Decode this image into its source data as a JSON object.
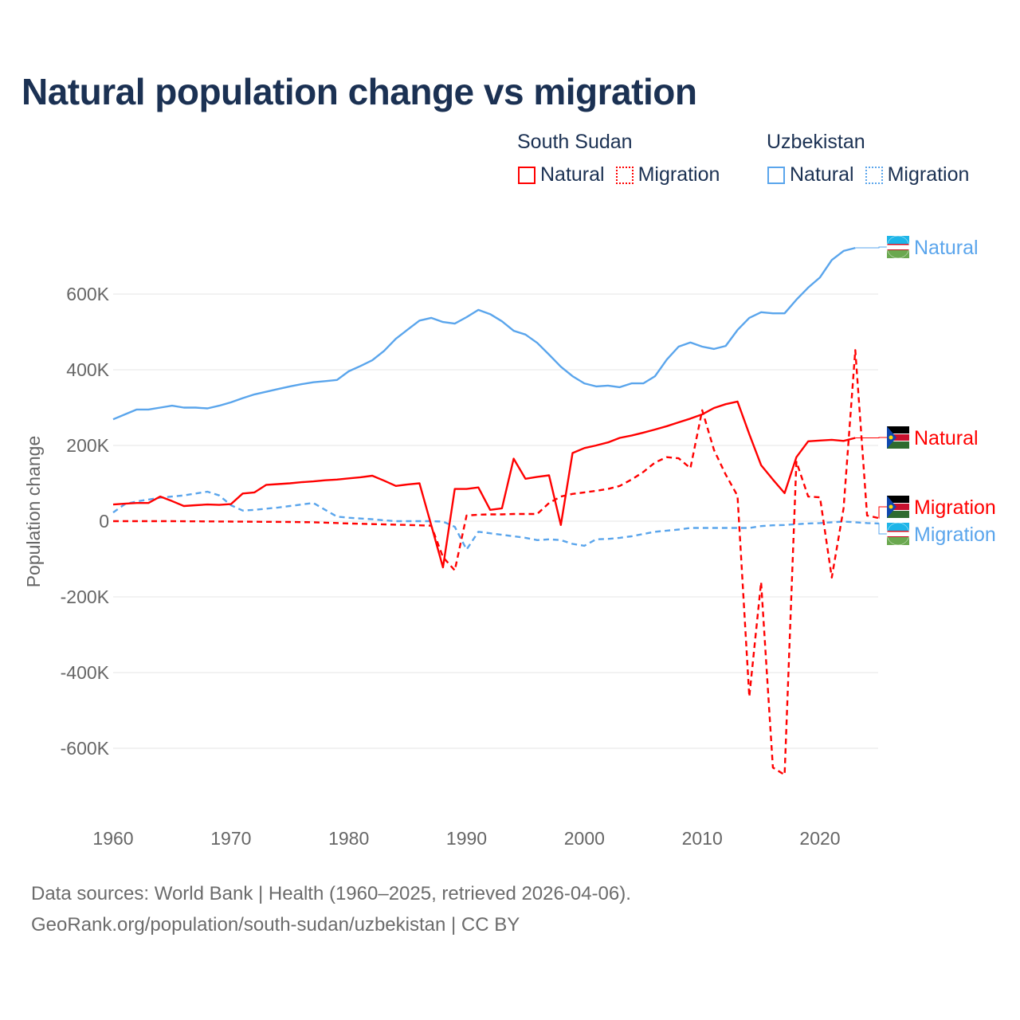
{
  "title": "Natural population change vs migration",
  "legend": {
    "groups": [
      {
        "name": "South Sudan",
        "items": [
          "Natural",
          "Migration"
        ]
      },
      {
        "name": "Uzbekistan",
        "items": [
          "Natural",
          "Migration"
        ]
      }
    ]
  },
  "footer": {
    "line1": "Data sources: World Bank | Health (1960–2025, retrieved 2026-04-06).",
    "line2": "GeoRank.org/population/south-sudan/uzbekistan | CC BY"
  },
  "colors": {
    "south_sudan": "#ff0000",
    "uzbekistan": "#5aa5ec",
    "grid": "#e6e6e6",
    "axis_text": "#666666"
  },
  "chart_data": {
    "type": "line",
    "title": "Natural population change vs migration",
    "xlabel": "",
    "ylabel": "Population change",
    "xlim": [
      1960,
      2025
    ],
    "ylim": [
      -750000,
      750000
    ],
    "x_ticks": [
      1960,
      1970,
      1980,
      1990,
      2000,
      2010,
      2020
    ],
    "x_tick_labels": [
      "1960",
      "1970",
      "1980",
      "1990",
      "2000",
      "2010",
      "2020"
    ],
    "y_ticks": [
      -600000,
      -400000,
      -200000,
      0,
      200000,
      400000,
      600000
    ],
    "y_tick_labels": [
      "-600K",
      "-400K",
      "-200K",
      "0",
      "200K",
      "400K",
      "600K"
    ],
    "grid": true,
    "legend_position": "top-right",
    "series": [
      {
        "name": "Uzbekistan Natural",
        "country": "Uzbekistan",
        "kind": "Natural",
        "end_label": "Natural",
        "color": "#5aa5ec",
        "dash": false,
        "points": [
          [
            1960,
            269000
          ],
          [
            1961,
            282000
          ],
          [
            1962,
            295000
          ],
          [
            1963,
            295000
          ],
          [
            1964,
            300000
          ],
          [
            1965,
            305000
          ],
          [
            1966,
            300000
          ],
          [
            1967,
            300000
          ],
          [
            1968,
            298000
          ],
          [
            1969,
            305000
          ],
          [
            1970,
            314000
          ],
          [
            1971,
            325000
          ],
          [
            1972,
            335000
          ],
          [
            1973,
            342000
          ],
          [
            1974,
            349000
          ],
          [
            1975,
            356000
          ],
          [
            1976,
            362000
          ],
          [
            1977,
            367000
          ],
          [
            1978,
            370000
          ],
          [
            1979,
            373000
          ],
          [
            1980,
            396000
          ],
          [
            1981,
            410000
          ],
          [
            1982,
            425000
          ],
          [
            1983,
            450000
          ],
          [
            1984,
            482000
          ],
          [
            1985,
            506000
          ],
          [
            1986,
            530000
          ],
          [
            1987,
            537000
          ],
          [
            1988,
            526000
          ],
          [
            1989,
            522000
          ],
          [
            1990,
            539000
          ],
          [
            1991,
            558000
          ],
          [
            1992,
            547000
          ],
          [
            1993,
            528000
          ],
          [
            1994,
            503000
          ],
          [
            1995,
            493000
          ],
          [
            1996,
            471000
          ],
          [
            1997,
            440000
          ],
          [
            1998,
            408000
          ],
          [
            1999,
            383000
          ],
          [
            2000,
            364000
          ],
          [
            2001,
            356000
          ],
          [
            2002,
            358000
          ],
          [
            2003,
            354000
          ],
          [
            2004,
            364000
          ],
          [
            2005,
            364000
          ],
          [
            2006,
            383000
          ],
          [
            2007,
            427000
          ],
          [
            2008,
            461000
          ],
          [
            2009,
            472000
          ],
          [
            2010,
            461000
          ],
          [
            2011,
            455000
          ],
          [
            2012,
            463000
          ],
          [
            2013,
            505000
          ],
          [
            2014,
            537000
          ],
          [
            2015,
            552000
          ],
          [
            2016,
            549000
          ],
          [
            2017,
            549000
          ],
          [
            2018,
            585000
          ],
          [
            2019,
            617000
          ],
          [
            2020,
            644000
          ],
          [
            2021,
            690000
          ],
          [
            2022,
            714000
          ],
          [
            2023,
            722000
          ]
        ]
      },
      {
        "name": "Uzbekistan Migration",
        "country": "Uzbekistan",
        "kind": "Migration",
        "end_label": "Migration",
        "color": "#5aa5ec",
        "dash": true,
        "points": [
          [
            1960,
            23000
          ],
          [
            1961,
            45000
          ],
          [
            1962,
            52000
          ],
          [
            1963,
            57000
          ],
          [
            1964,
            62000
          ],
          [
            1965,
            65000
          ],
          [
            1966,
            68000
          ],
          [
            1967,
            73000
          ],
          [
            1968,
            78000
          ],
          [
            1969,
            68000
          ],
          [
            1970,
            42000
          ],
          [
            1971,
            28000
          ],
          [
            1972,
            30000
          ],
          [
            1973,
            33000
          ],
          [
            1974,
            36000
          ],
          [
            1975,
            40000
          ],
          [
            1976,
            44000
          ],
          [
            1977,
            48000
          ],
          [
            1978,
            30000
          ],
          [
            1979,
            12000
          ],
          [
            1980,
            9000
          ],
          [
            1981,
            7000
          ],
          [
            1982,
            5000
          ],
          [
            1983,
            2000
          ],
          [
            1984,
            0
          ],
          [
            1985,
            0
          ],
          [
            1986,
            0
          ],
          [
            1987,
            0
          ],
          [
            1988,
            -1000
          ],
          [
            1989,
            -15000
          ],
          [
            1990,
            -75000
          ],
          [
            1991,
            -28000
          ],
          [
            1992,
            -32000
          ],
          [
            1993,
            -36000
          ],
          [
            1994,
            -40000
          ],
          [
            1995,
            -44000
          ],
          [
            1996,
            -50000
          ],
          [
            1997,
            -48000
          ],
          [
            1998,
            -50000
          ],
          [
            1999,
            -60000
          ],
          [
            2000,
            -65000
          ],
          [
            2001,
            -48000
          ],
          [
            2002,
            -47000
          ],
          [
            2003,
            -44000
          ],
          [
            2004,
            -40000
          ],
          [
            2005,
            -34000
          ],
          [
            2006,
            -28000
          ],
          [
            2007,
            -25000
          ],
          [
            2008,
            -22000
          ],
          [
            2009,
            -18000
          ],
          [
            2010,
            -18000
          ],
          [
            2011,
            -18000
          ],
          [
            2012,
            -18000
          ],
          [
            2013,
            -18000
          ],
          [
            2014,
            -18000
          ],
          [
            2015,
            -13000
          ],
          [
            2016,
            -11000
          ],
          [
            2017,
            -10000
          ],
          [
            2018,
            -8000
          ],
          [
            2019,
            -6000
          ],
          [
            2020,
            -5000
          ],
          [
            2021,
            -3000
          ],
          [
            2022,
            -1000
          ],
          [
            2023,
            -3000
          ],
          [
            2024,
            -5000
          ],
          [
            2025,
            -6000
          ]
        ]
      },
      {
        "name": "South Sudan Natural",
        "country": "South Sudan",
        "kind": "Natural",
        "end_label": "Natural",
        "color": "#ff0000",
        "dash": false,
        "points": [
          [
            1960,
            44000
          ],
          [
            1961,
            46000
          ],
          [
            1962,
            48000
          ],
          [
            1963,
            48000
          ],
          [
            1964,
            65000
          ],
          [
            1965,
            53000
          ],
          [
            1966,
            40000
          ],
          [
            1967,
            42000
          ],
          [
            1968,
            44000
          ],
          [
            1969,
            43000
          ],
          [
            1970,
            45000
          ],
          [
            1971,
            73000
          ],
          [
            1972,
            76000
          ],
          [
            1973,
            96000
          ],
          [
            1974,
            98000
          ],
          [
            1975,
            100000
          ],
          [
            1976,
            103000
          ],
          [
            1977,
            105000
          ],
          [
            1978,
            108000
          ],
          [
            1979,
            110000
          ],
          [
            1980,
            113000
          ],
          [
            1981,
            116000
          ],
          [
            1982,
            120000
          ],
          [
            1983,
            107000
          ],
          [
            1984,
            93000
          ],
          [
            1985,
            97000
          ],
          [
            1986,
            100000
          ],
          [
            1987,
            -10000
          ],
          [
            1988,
            -122000
          ],
          [
            1989,
            85000
          ],
          [
            1990,
            85000
          ],
          [
            1991,
            89000
          ],
          [
            1992,
            30000
          ],
          [
            1993,
            34000
          ],
          [
            1994,
            165000
          ],
          [
            1995,
            112000
          ],
          [
            1996,
            117000
          ],
          [
            1997,
            121000
          ],
          [
            1998,
            -10000
          ],
          [
            1999,
            180000
          ],
          [
            2000,
            193000
          ],
          [
            2001,
            200000
          ],
          [
            2002,
            208000
          ],
          [
            2003,
            220000
          ],
          [
            2004,
            226000
          ],
          [
            2005,
            234000
          ],
          [
            2006,
            242000
          ],
          [
            2007,
            251000
          ],
          [
            2008,
            261000
          ],
          [
            2009,
            271000
          ],
          [
            2010,
            282000
          ],
          [
            2011,
            299000
          ],
          [
            2012,
            309000
          ],
          [
            2013,
            316000
          ],
          [
            2014,
            230000
          ],
          [
            2015,
            148000
          ],
          [
            2016,
            110000
          ],
          [
            2017,
            74000
          ],
          [
            2018,
            169000
          ],
          [
            2019,
            211000
          ],
          [
            2020,
            213000
          ],
          [
            2021,
            215000
          ],
          [
            2022,
            212000
          ],
          [
            2023,
            220000
          ]
        ]
      },
      {
        "name": "South Sudan Migration",
        "country": "South Sudan",
        "kind": "Migration",
        "end_label": "Migration",
        "color": "#ff0000",
        "dash": true,
        "points": [
          [
            1960,
            0
          ],
          [
            1965,
            0
          ],
          [
            1970,
            -1000
          ],
          [
            1975,
            -2000
          ],
          [
            1977,
            -3000
          ],
          [
            1980,
            -6000
          ],
          [
            1985,
            -10000
          ],
          [
            1987,
            -12000
          ],
          [
            1988,
            -95000
          ],
          [
            1989,
            -130000
          ],
          [
            1990,
            15000
          ],
          [
            1991,
            17000
          ],
          [
            1992,
            18000
          ],
          [
            1993,
            18000
          ],
          [
            1994,
            19000
          ],
          [
            1995,
            19000
          ],
          [
            1996,
            19000
          ],
          [
            1997,
            48000
          ],
          [
            1998,
            65000
          ],
          [
            1999,
            72000
          ],
          [
            2000,
            76000
          ],
          [
            2001,
            80000
          ],
          [
            2002,
            85000
          ],
          [
            2003,
            93000
          ],
          [
            2004,
            110000
          ],
          [
            2005,
            130000
          ],
          [
            2006,
            155000
          ],
          [
            2007,
            169000
          ],
          [
            2008,
            166000
          ],
          [
            2009,
            140000
          ],
          [
            2010,
            293000
          ],
          [
            2011,
            188000
          ],
          [
            2012,
            123000
          ],
          [
            2013,
            67000
          ],
          [
            2014,
            -464000
          ],
          [
            2015,
            -161000
          ],
          [
            2016,
            -651000
          ],
          [
            2017,
            -670000
          ],
          [
            2018,
            157000
          ],
          [
            2019,
            65000
          ],
          [
            2020,
            63000
          ],
          [
            2021,
            -149000
          ],
          [
            2022,
            34000
          ],
          [
            2023,
            452000
          ],
          [
            2024,
            15000
          ],
          [
            2025,
            8000
          ]
        ]
      }
    ]
  }
}
